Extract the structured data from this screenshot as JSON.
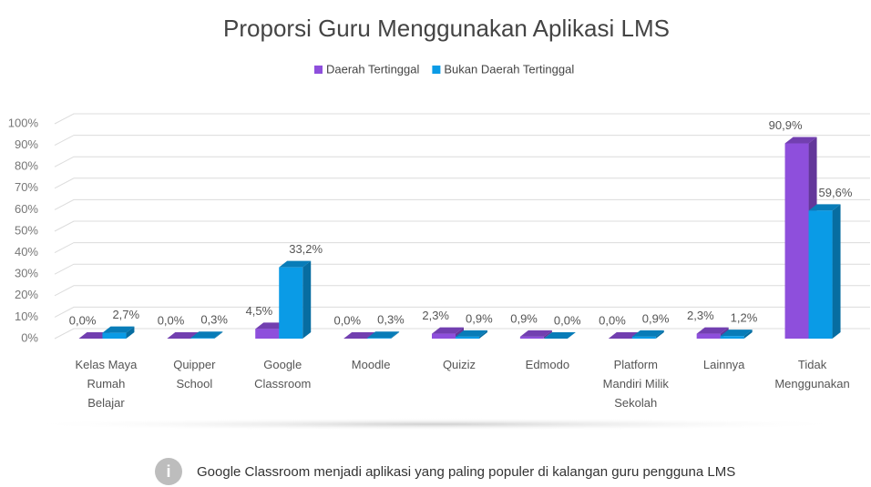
{
  "chart_data": {
    "type": "bar3d",
    "title": "Proporsi Guru Menggunakan Aplikasi LMS",
    "categories": [
      "Kelas Maya Rumah Belajar",
      "Quipper School",
      "Google Classroom",
      "Moodle",
      "Quiziz",
      "Edmodo",
      "Platform Mandiri Milik Sekolah",
      "Lainnya",
      "Tidak Menggunakan"
    ],
    "series": [
      {
        "name": "Daerah Tertinggal",
        "color": "#8e4fdc",
        "values": [
          0,
          0,
          4.5,
          0,
          2.3,
          0.9,
          0,
          2.3,
          90.9
        ],
        "value_labels": [
          "0,0%",
          "0,0%",
          "4,5%",
          "0,0%",
          "2,3%",
          "0,9%",
          "0,0%",
          "2,3%",
          "90,9%"
        ]
      },
      {
        "name": "Bukan Daerah Tertinggal",
        "color": "#0a9be6",
        "values": [
          2.7,
          0.3,
          33.2,
          0.3,
          0.9,
          0,
          0.9,
          1.2,
          59.6
        ],
        "value_labels": [
          "2,7%",
          "0,3%",
          "33,2%",
          "0,3%",
          "0,9%",
          "0,0%",
          "0,9%",
          "1,2%",
          "59,6%"
        ]
      }
    ],
    "ylim": [
      0,
      100
    ],
    "yticks": [
      {
        "value": 0,
        "label": "0%"
      },
      {
        "value": 10,
        "label": "10%"
      },
      {
        "value": 20,
        "label": "20%"
      },
      {
        "value": 30,
        "label": "30%"
      },
      {
        "value": 40,
        "label": "40%"
      },
      {
        "value": 50,
        "label": "50%"
      },
      {
        "value": 60,
        "label": "60%"
      },
      {
        "value": 70,
        "label": "70%"
      },
      {
        "value": 80,
        "label": "80%"
      },
      {
        "value": 90,
        "label": "90%"
      },
      {
        "value": 100,
        "label": "100%"
      }
    ],
    "grid": true,
    "legend": "top"
  },
  "note": "Google Classroom menjadi aplikasi yang paling populer di kalangan guru pengguna LMS"
}
